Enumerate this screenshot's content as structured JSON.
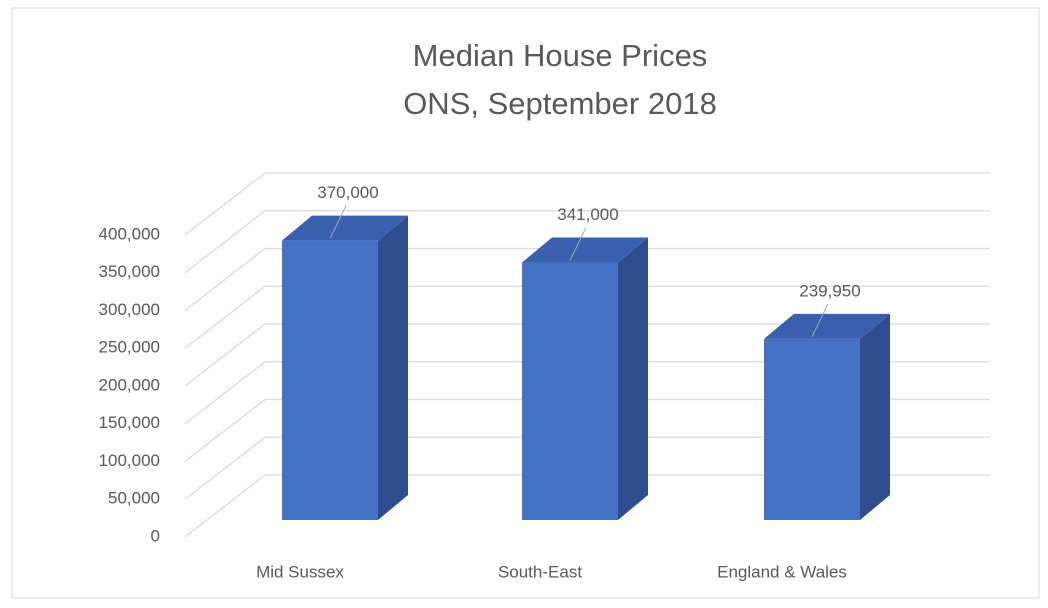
{
  "chart_data": {
    "type": "bar3d",
    "title": "Median House Prices",
    "subtitle": "ONS, September 2018",
    "categories": [
      "Mid Sussex",
      "South-East",
      "England & Wales"
    ],
    "values": [
      370000,
      341000,
      239950
    ],
    "value_labels": [
      "370,000",
      "341,000",
      "239,950"
    ],
    "color": "#4472c4",
    "ylim": [
      0,
      400000
    ],
    "yticks": [
      {
        "value": 0,
        "label": "0"
      },
      {
        "value": 50000,
        "label": "50,000"
      },
      {
        "value": 100000,
        "label": "100,000"
      },
      {
        "value": 150000,
        "label": "150,000"
      },
      {
        "value": 200000,
        "label": "200,000"
      },
      {
        "value": 250000,
        "label": "250,000"
      },
      {
        "value": 300000,
        "label": "300,000"
      },
      {
        "value": 350000,
        "label": "350,000"
      },
      {
        "value": 400000,
        "label": "400,000"
      }
    ],
    "grid": true
  }
}
